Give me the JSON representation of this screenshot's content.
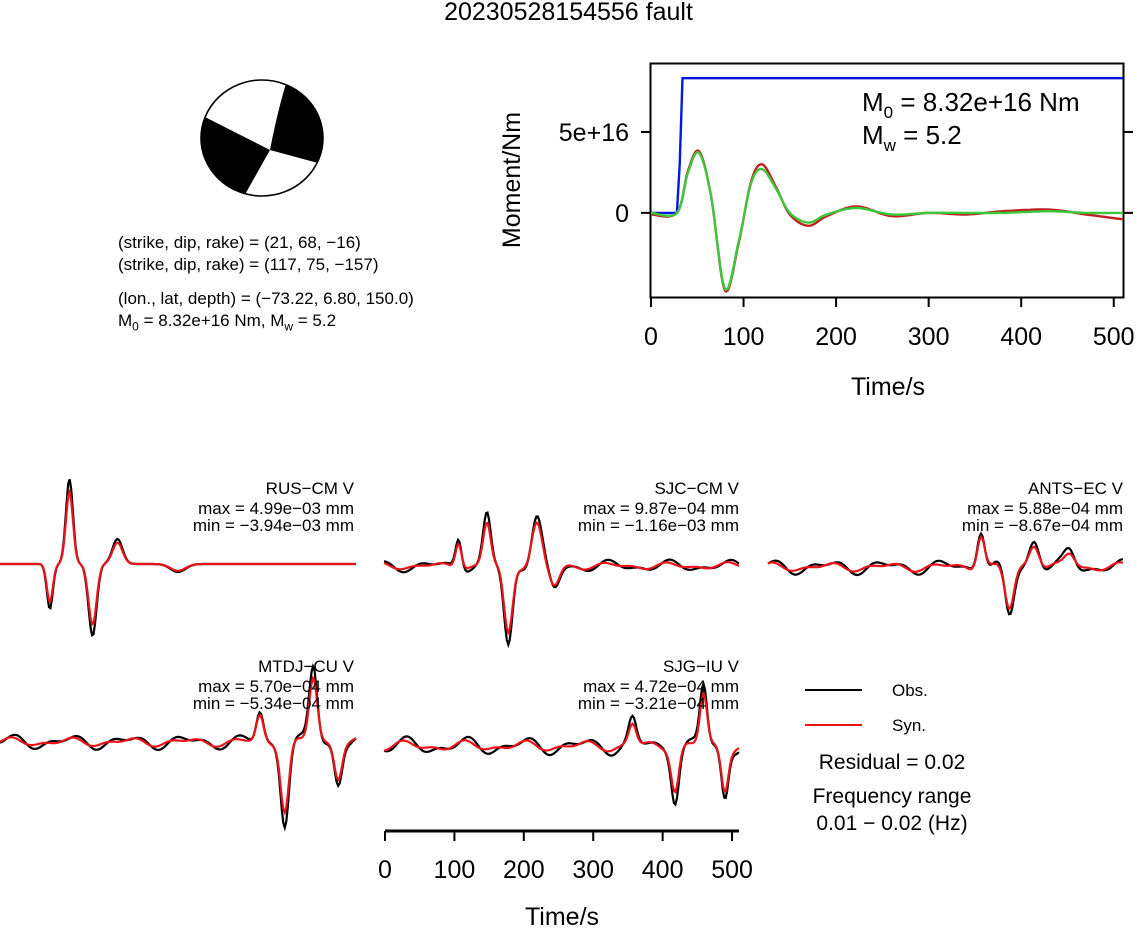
{
  "title": "20230528154556 fault",
  "focal": {
    "line1": "(strike, dip, rake) = (21, 68, −16)",
    "line2": "(strike, dip, rake) = (117, 75, −157)",
    "line3": "(lon., lat, depth) = (−73.22, 6.80, 150.0)",
    "m0_label": "M",
    "m0_sub": "0",
    "m0_rest": " = 8.32e+16 Nm, M",
    "mw_sub": "w",
    "mw_rest": " = 5.2"
  },
  "moment_plot": {
    "ylabel": "Moment/Nm",
    "xlabel": "Time/s",
    "ytick_labels": [
      "0",
      "5e+16"
    ],
    "xtick_labels": [
      "0",
      "100",
      "200",
      "300",
      "400",
      "500"
    ],
    "m0_prefix": "M",
    "m0_sub": "0",
    "m0_text": " = 8.32e+16 Nm",
    "mw_prefix": "M",
    "mw_sub": "w",
    "mw_text": " = 5.2"
  },
  "waveform_axis": {
    "xlabel": "Time/s",
    "xtick_labels": [
      "0",
      "100",
      "200",
      "300",
      "400",
      "500"
    ]
  },
  "legend": {
    "obs": "Obs.",
    "syn": "Syn.",
    "residual": "Residual = 0.02",
    "freq_title": "Frequency range",
    "freq_value": "0.01 − 0.02 (Hz)"
  },
  "stations": [
    {
      "name": "RUS−CM V",
      "max": "max = 4.99e−03 mm",
      "min": "min = −3.94e−03 mm"
    },
    {
      "name": "SJC−CM V",
      "max": "max = 9.87e−04 mm",
      "min": "min = −1.16e−03 mm"
    },
    {
      "name": "ANTS−EC V",
      "max": "max = 5.88e−04 mm",
      "min": "min = −8.67e−04 mm"
    },
    {
      "name": "MTDJ−CU V",
      "max": "max = 5.70e−04 mm",
      "min": "min = −5.34e−04 mm"
    },
    {
      "name": "SJG−IU V",
      "max": "max = 4.72e−04 mm",
      "min": "min = −3.21e−04 mm"
    }
  ],
  "colors": {
    "obs": "#000000",
    "syn": "#e8141a",
    "moment": "#0018e0",
    "rate_obs": "#c02020",
    "rate_syn": "#3cc83c"
  },
  "chart_data": [
    {
      "type": "line",
      "title": "",
      "xlabel": "Time/s",
      "ylabel": "Moment/Nm",
      "xlim": [
        0,
        510
      ],
      "ylim": [
        -5.2e+16,
        9.2e+16
      ],
      "series": [
        {
          "color": "#0018e0",
          "x": [
            0,
            28,
            31,
            34,
            510
          ],
          "y": [
            0,
            0,
            3e+16,
            8.32e+16,
            8.32e+16
          ]
        },
        {
          "color": "#c02020",
          "x": [
            0,
            28,
            40,
            52,
            65,
            80,
            95,
            108,
            120,
            135,
            150,
            170,
            190,
            222,
            260,
            300,
            340,
            380,
            430,
            470,
            510
          ],
          "y": [
            -1000000000000000.0,
            0,
            2.6e+16,
            3.8e+16,
            1e+16,
            -4.8e+16,
            -1.8e+16,
            1.9e+16,
            3e+16,
            1.6e+16,
            -1000000000000000.0,
            -8000000000000000.0,
            -2000000000000000.0,
            4000000000000000.0,
            -2000000000000000.0,
            0,
            -1000000000000000.0,
            1000000000000000.0,
            2000000000000000.0,
            -1000000000000000.0,
            -4000000000000000.0
          ]
        },
        {
          "color": "#3cc83c",
          "x": [
            0,
            28,
            40,
            52,
            65,
            80,
            95,
            108,
            120,
            135,
            150,
            170,
            190,
            222,
            260,
            300,
            340,
            380,
            430,
            470,
            510
          ],
          "y": [
            0,
            0,
            2.5e+16,
            3.7e+16,
            1e+16,
            -4.7e+16,
            -1.7e+16,
            1.8e+16,
            2.7e+16,
            1.5e+16,
            0,
            -6000000000000000.0,
            -1000000000000000.0,
            3000000000000000.0,
            -1000000000000000.0,
            0,
            0,
            0,
            1000000000000000.0,
            0,
            0
          ]
        }
      ]
    }
  ]
}
